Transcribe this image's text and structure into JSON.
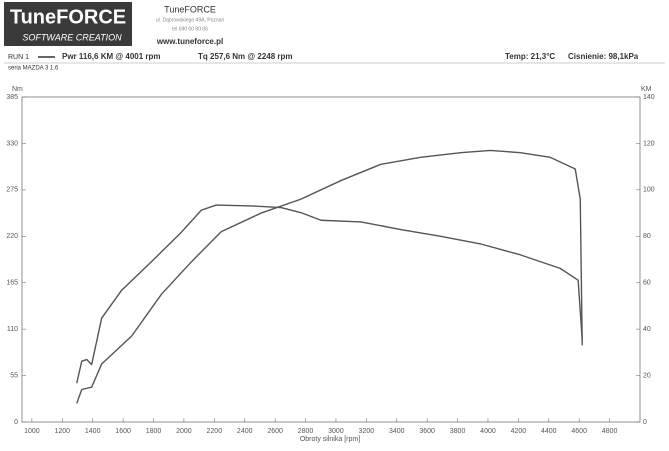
{
  "header": {
    "logo": "TuneFORCE",
    "logo_sub": "SOFTWARE CREATION",
    "company": "TuneFORCE",
    "address": "ul. Dąbrowskiego 49A, Poznań",
    "phone": "tel 690 00 80 06",
    "website": "www.tuneforce.pl",
    "run": "RUN 1",
    "power": "Pwr 116,6 KM @ 4001 rpm",
    "torque": "Tq 257,6 Nm @ 2248 rpm",
    "temp": "Temp: 21,3°C",
    "pressure": "Cisnienie: 98,1kPa",
    "vehicle": "seria MAZDA 3 1.6"
  },
  "chart_data": {
    "type": "line",
    "xlabel": "Obroty silnika [rpm]",
    "ylabel": "Nm",
    "y2label": "KM",
    "xlim": [
      935,
      5000
    ],
    "xticks": [
      1000,
      1200,
      1400,
      1600,
      1800,
      2000,
      2200,
      2400,
      2600,
      2800,
      3000,
      3200,
      3400,
      3600,
      3800,
      4000,
      4200,
      4400,
      4600,
      4800
    ],
    "ylim": [
      0,
      385
    ],
    "yticks": [
      0,
      55,
      110,
      165,
      220,
      275,
      330,
      385
    ],
    "y2lim": [
      0,
      140
    ],
    "y2ticks": [
      0,
      20,
      40,
      60,
      80,
      100,
      120,
      140
    ],
    "series": [
      {
        "name": "Tq",
        "color": "#555555",
        "x": [
          1295,
          1328,
          1361,
          1393,
          1459,
          1590,
          1787,
          1984,
          2115,
          2213,
          2443,
          2639,
          2770,
          2902,
          3164,
          3426,
          3689,
          3951,
          4213,
          4475,
          4593,
          4620
        ],
        "values": [
          46,
          72,
          74,
          68,
          123,
          156,
          190,
          225,
          251,
          257,
          256,
          254,
          248,
          239,
          237,
          228,
          220,
          211,
          198,
          182,
          168,
          97
        ]
      },
      {
        "name": "Pwr",
        "color": "#555555",
        "axis": "y2",
        "x": [
          1295,
          1328,
          1393,
          1459,
          1656,
          1852,
          2049,
          2246,
          2508,
          2770,
          3033,
          3295,
          3557,
          3820,
          4016,
          4213,
          4410,
          4574,
          4607,
          4620
        ],
        "values": [
          8,
          14,
          15,
          25,
          37,
          55,
          69,
          82,
          90,
          96,
          104,
          111,
          114,
          116,
          117,
          116,
          114,
          109,
          96,
          33
        ]
      }
    ]
  }
}
